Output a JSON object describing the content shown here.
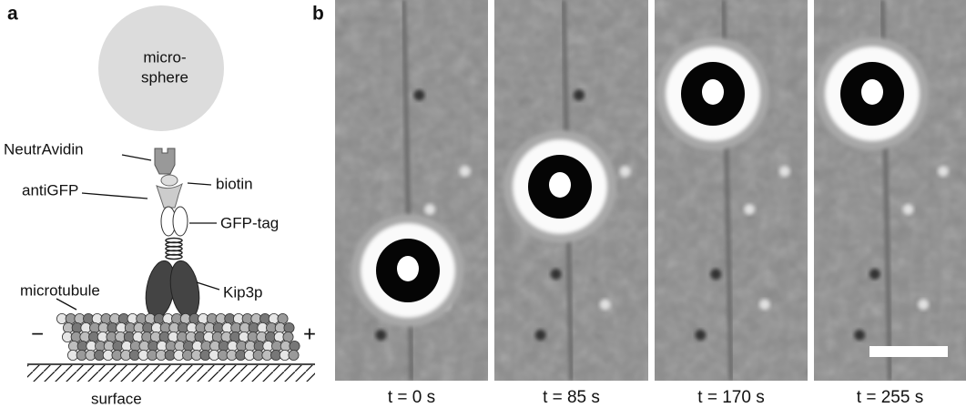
{
  "panel_a": {
    "label": "a",
    "sphere_label": [
      "micro-",
      "sphere"
    ],
    "neutravidin": "NeutrAvidin",
    "biotin": "biotin",
    "antigfp": "antiGFP",
    "gfp_tag": "GFP-tag",
    "kip3p": "Kip3p",
    "microtubule": "microtubule",
    "minus_end": "−",
    "plus_end": "+",
    "surface": "surface"
  },
  "panel_b": {
    "label": "b",
    "time_labels": [
      "t = 0 s",
      "t = 85 s",
      "t = 170 s",
      "t = 255 s"
    ]
  }
}
